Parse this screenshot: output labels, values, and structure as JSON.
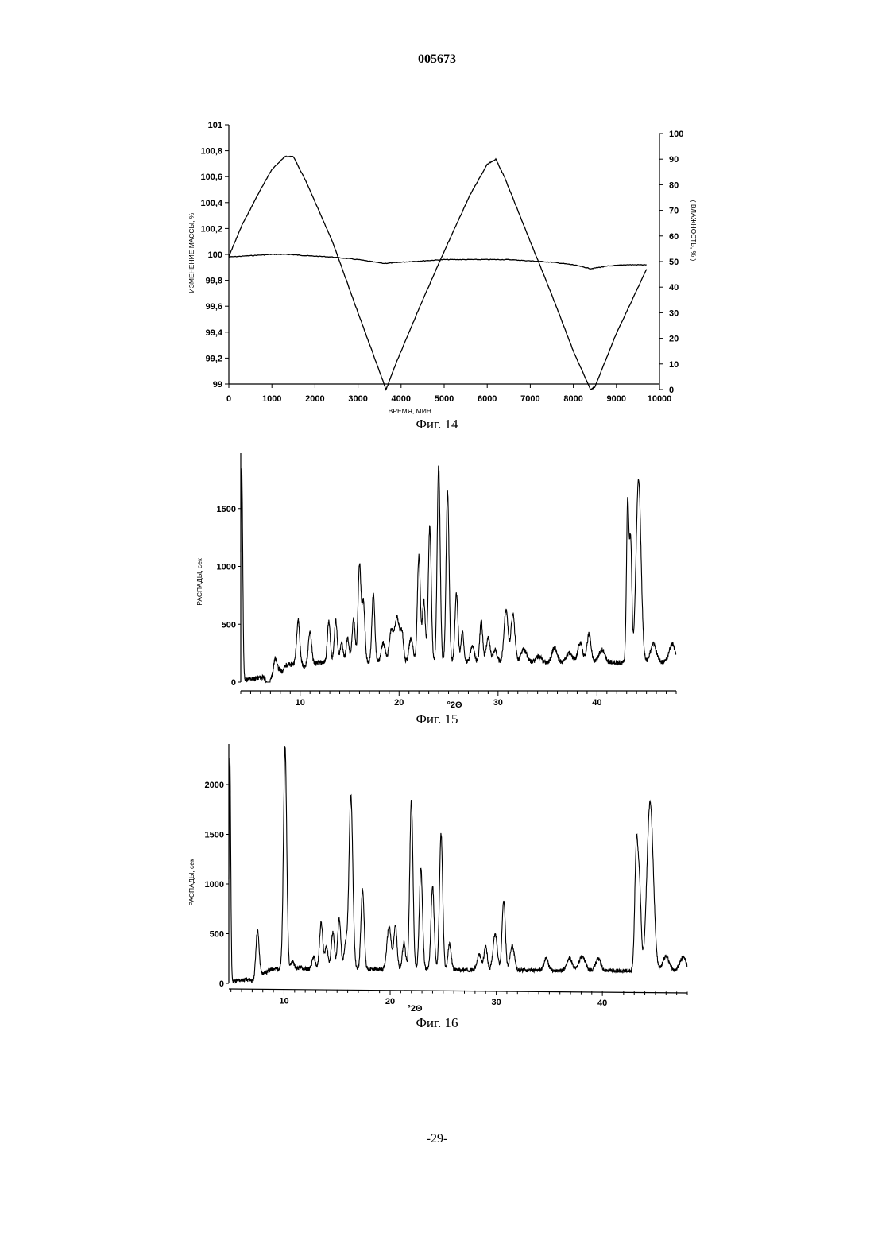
{
  "header": {
    "doc_number": "005673"
  },
  "footer": {
    "page_number": "-29-"
  },
  "figures": [
    {
      "caption": "Фиг. 14",
      "xlabel": "ВРЕМЯ, МИН.",
      "ylabel_left": "ИЗМЕНЕНИЕ МАССЫ, %",
      "ylabel_right": "( ВЛАЖНОСТЬ, % )"
    },
    {
      "caption": "Фиг. 15",
      "xlabel": "°2Θ",
      "ylabel": "РАСПАДЫ, сек"
    },
    {
      "caption": "Фиг. 16",
      "xlabel": "°2Θ",
      "ylabel": "РАСПАДЫ, сек"
    }
  ],
  "chart_data": [
    {
      "type": "line",
      "title": "",
      "xlabel": "ВРЕМЯ, МИН.",
      "ylabel": "ИЗМЕНЕНИЕ МАССЫ, %",
      "y2label": "( ВЛАЖНОСТЬ, % )",
      "xlim": [
        0,
        10000
      ],
      "ylim": [
        99,
        101
      ],
      "y2lim": [
        0,
        100
      ],
      "xticks": [
        "0",
        "1000",
        "2000",
        "3000",
        "4000",
        "5000",
        "6000",
        "7000",
        "8000",
        "9000",
        "10000"
      ],
      "yticks": [
        "99",
        "99,2",
        "99,4",
        "99,6",
        "99,8",
        "100",
        "100,2",
        "100,4",
        "100,6",
        "100,8",
        "101"
      ],
      "y2ticks": [
        "0",
        "10",
        "20",
        "30",
        "40",
        "50",
        "60",
        "70",
        "80",
        "90",
        "100"
      ],
      "grid": false,
      "series": [
        {
          "axis": "left",
          "x": [
            0,
            500,
            1000,
            1400,
            1800,
            2400,
            3000,
            3600,
            4000,
            4500,
            5000,
            5500,
            6000,
            6500,
            7000,
            7500,
            8000,
            8400,
            8800,
            9200,
            9700
          ],
          "y": [
            99.98,
            99.99,
            100.0,
            100.0,
            99.99,
            99.98,
            99.96,
            99.93,
            99.94,
            99.95,
            99.96,
            99.96,
            99.96,
            99.96,
            99.95,
            99.94,
            99.92,
            99.89,
            99.91,
            99.92,
            99.92
          ]
        },
        {
          "axis": "right",
          "x": [
            0,
            300,
            700,
            1000,
            1300,
            1500,
            1800,
            2400,
            3000,
            3500,
            3650,
            3900,
            4400,
            5000,
            5600,
            6000,
            6200,
            6400,
            6900,
            7500,
            8000,
            8400,
            8500,
            9000,
            9700
          ],
          "y": [
            52,
            64,
            77,
            86,
            91,
            91,
            81,
            58,
            30,
            7,
            0,
            11,
            31,
            54,
            76,
            88,
            90,
            83,
            62,
            37,
            15,
            0,
            1,
            22,
            47
          ]
        }
      ]
    },
    {
      "type": "line",
      "title": "",
      "xlabel": "°2Θ",
      "ylabel": "РАСПАДЫ, сек",
      "xlim": [
        4,
        48
      ],
      "ylim": [
        0,
        2000
      ],
      "xticks": [
        "10",
        "20",
        "30",
        "40"
      ],
      "yticks": [
        "0",
        "500",
        "1000",
        "1500"
      ],
      "baseline": 170,
      "peaks": [
        [
          4.1,
          1990,
          0.1
        ],
        [
          6.8,
          90,
          0.2
        ],
        [
          7.5,
          290,
          0.15
        ],
        [
          8.2,
          140,
          0.15
        ],
        [
          9.1,
          150,
          0.2
        ],
        [
          9.8,
          540,
          0.15
        ],
        [
          10.4,
          130,
          0.15
        ],
        [
          11.0,
          440,
          0.15
        ],
        [
          11.6,
          160,
          0.15
        ],
        [
          12.3,
          170,
          0.15
        ],
        [
          12.9,
          520,
          0.15
        ],
        [
          13.6,
          530,
          0.15
        ],
        [
          14.2,
          340,
          0.15
        ],
        [
          14.8,
          380,
          0.15
        ],
        [
          15.4,
          550,
          0.15
        ],
        [
          16.0,
          1010,
          0.15
        ],
        [
          16.4,
          680,
          0.15
        ],
        [
          17.4,
          760,
          0.15
        ],
        [
          18.4,
          340,
          0.2
        ],
        [
          19.2,
          430,
          0.2
        ],
        [
          19.8,
          560,
          0.25
        ],
        [
          20.3,
          400,
          0.15
        ],
        [
          21.2,
          380,
          0.2
        ],
        [
          22.0,
          1090,
          0.15
        ],
        [
          22.5,
          700,
          0.15
        ],
        [
          23.1,
          1340,
          0.15
        ],
        [
          24.0,
          1870,
          0.15
        ],
        [
          24.9,
          1650,
          0.15
        ],
        [
          25.8,
          770,
          0.15
        ],
        [
          26.4,
          430,
          0.15
        ],
        [
          27.4,
          310,
          0.2
        ],
        [
          28.3,
          530,
          0.15
        ],
        [
          29.0,
          380,
          0.2
        ],
        [
          29.7,
          280,
          0.2
        ],
        [
          30.8,
          630,
          0.2
        ],
        [
          31.5,
          590,
          0.2
        ],
        [
          32.6,
          280,
          0.3
        ],
        [
          34.1,
          220,
          0.3
        ],
        [
          35.7,
          300,
          0.25
        ],
        [
          37.2,
          250,
          0.3
        ],
        [
          38.3,
          340,
          0.25
        ],
        [
          39.2,
          420,
          0.2
        ],
        [
          40.5,
          280,
          0.3
        ],
        [
          43.1,
          1560,
          0.12
        ],
        [
          43.4,
          1200,
          0.12
        ],
        [
          44.2,
          1750,
          0.25
        ],
        [
          45.7,
          330,
          0.3
        ],
        [
          47.6,
          330,
          0.3
        ]
      ]
    },
    {
      "type": "line",
      "title": "",
      "xlabel": "°2Θ",
      "ylabel": "РАСПАДЫ, сек",
      "xlim": [
        4.8,
        48
      ],
      "ylim": [
        0,
        2400
      ],
      "xticks": [
        "10",
        "20",
        "30",
        "40"
      ],
      "yticks": [
        "0",
        "500",
        "1000",
        "1500",
        "2000"
      ],
      "baseline": 150,
      "peaks": [
        [
          4.9,
          2390,
          0.08
        ],
        [
          7.1,
          110,
          0.15
        ],
        [
          7.5,
          610,
          0.15
        ],
        [
          10.1,
          2390,
          0.15
        ],
        [
          10.8,
          230,
          0.15
        ],
        [
          11.5,
          170,
          0.15
        ],
        [
          12.8,
          270,
          0.15
        ],
        [
          13.5,
          620,
          0.15
        ],
        [
          14.0,
          380,
          0.15
        ],
        [
          14.6,
          520,
          0.15
        ],
        [
          15.2,
          660,
          0.15
        ],
        [
          15.8,
          400,
          0.15
        ],
        [
          16.3,
          1900,
          0.18
        ],
        [
          17.4,
          960,
          0.15
        ],
        [
          19.9,
          580,
          0.2
        ],
        [
          20.5,
          590,
          0.15
        ],
        [
          21.3,
          420,
          0.15
        ],
        [
          22.0,
          1860,
          0.15
        ],
        [
          22.9,
          1170,
          0.15
        ],
        [
          24.0,
          990,
          0.15
        ],
        [
          24.8,
          1520,
          0.15
        ],
        [
          25.6,
          410,
          0.15
        ],
        [
          28.4,
          300,
          0.2
        ],
        [
          29.0,
          390,
          0.15
        ],
        [
          29.9,
          510,
          0.2
        ],
        [
          30.7,
          860,
          0.15
        ],
        [
          31.5,
          400,
          0.2
        ],
        [
          34.7,
          270,
          0.2
        ],
        [
          36.9,
          270,
          0.25
        ],
        [
          38.1,
          290,
          0.3
        ],
        [
          39.6,
          270,
          0.25
        ],
        [
          43.2,
          1380,
          0.15
        ],
        [
          43.5,
          950,
          0.15
        ],
        [
          44.5,
          1850,
          0.3
        ],
        [
          46.0,
          300,
          0.3
        ],
        [
          47.6,
          290,
          0.3
        ]
      ]
    }
  ]
}
